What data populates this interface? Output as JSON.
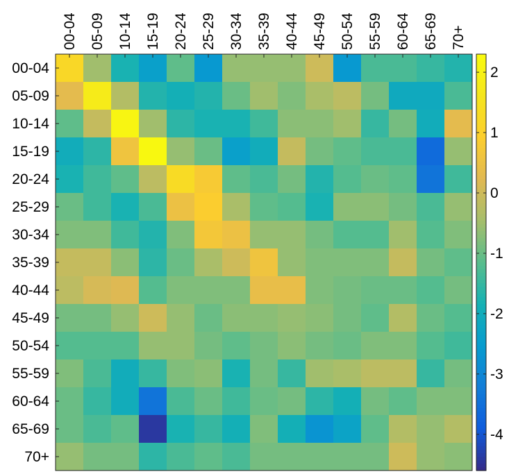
{
  "chart_data": {
    "type": "heatmap",
    "x_labels": [
      "00-04",
      "05-09",
      "10-14",
      "15-19",
      "20-24",
      "25-29",
      "30-34",
      "35-39",
      "40-44",
      "45-49",
      "50-54",
      "55-59",
      "60-64",
      "65-69",
      "70+"
    ],
    "y_labels": [
      "00-04",
      "05-09",
      "10-14",
      "15-19",
      "20-24",
      "25-29",
      "30-34",
      "35-39",
      "40-44",
      "45-49",
      "50-54",
      "55-59",
      "60-64",
      "65-69",
      "70+"
    ],
    "x_axis_position": "top",
    "values": [
      [
        1.2,
        -0.5,
        -1.8,
        -2.4,
        -1.1,
        -2.6,
        -0.6,
        -0.6,
        -0.6,
        0.0,
        -2.6,
        -1.3,
        -1.3,
        -1.5,
        -1.7
      ],
      [
        0.3,
        1.8,
        -0.3,
        -1.7,
        -1.9,
        -1.7,
        -1.0,
        -0.5,
        -0.8,
        -0.4,
        -0.2,
        -0.9,
        -2.1,
        -2.1,
        -1.3
      ],
      [
        -1.1,
        -0.1,
        2.1,
        -0.5,
        -1.6,
        -1.8,
        -1.8,
        -1.4,
        -0.7,
        -0.7,
        -0.5,
        -1.5,
        -0.9,
        -2.0,
        0.3
      ],
      [
        -2.0,
        -1.6,
        0.6,
        2.2,
        -0.6,
        -1.0,
        -2.4,
        -2.0,
        -0.1,
        -0.9,
        -1.1,
        -1.3,
        -1.3,
        -3.6,
        -0.6
      ],
      [
        -1.8,
        -1.4,
        -1.1,
        -0.2,
        1.3,
        0.8,
        -1.1,
        -1.3,
        -0.9,
        -1.7,
        -1.2,
        -1.0,
        -1.1,
        -3.4,
        -1.4
      ],
      [
        -1.0,
        -1.4,
        -1.8,
        -1.3,
        0.5,
        0.9,
        -0.4,
        -1.1,
        -1.2,
        -1.8,
        -0.7,
        -0.7,
        -0.9,
        -1.3,
        -0.6
      ],
      [
        -0.8,
        -0.8,
        -1.4,
        -1.7,
        -0.8,
        0.7,
        0.5,
        -0.6,
        -0.6,
        -0.9,
        -1.2,
        -1.2,
        -0.5,
        -1.2,
        -0.8
      ],
      [
        -0.1,
        -0.1,
        -0.7,
        -1.6,
        -1.0,
        -0.4,
        0.0,
        0.6,
        -0.6,
        -0.8,
        -0.8,
        -0.8,
        -0.1,
        -0.9,
        -1.1
      ],
      [
        -0.2,
        0.1,
        0.2,
        -1.2,
        -0.8,
        -0.8,
        -0.8,
        0.4,
        0.4,
        -0.8,
        -0.9,
        -1.0,
        -1.0,
        -1.2,
        -0.9
      ],
      [
        -0.9,
        -0.9,
        -0.6,
        0.0,
        -0.6,
        -1.0,
        -0.7,
        -0.7,
        -0.6,
        -0.7,
        -0.9,
        -1.1,
        -0.3,
        -1.0,
        -1.2
      ],
      [
        -1.2,
        -1.2,
        -1.2,
        -0.6,
        -0.6,
        -0.9,
        -1.1,
        -0.9,
        -0.7,
        -0.9,
        -1.0,
        -0.8,
        -0.8,
        -1.2,
        -1.4
      ],
      [
        -0.8,
        -1.3,
        -2.0,
        -1.5,
        -0.8,
        -0.7,
        -1.8,
        -0.9,
        -1.5,
        -0.5,
        -0.4,
        -0.2,
        -0.2,
        -1.5,
        -0.9
      ],
      [
        -1.0,
        -1.5,
        -2.0,
        -3.4,
        -1.3,
        -1.0,
        -1.4,
        -1.0,
        -0.9,
        -1.6,
        -1.9,
        -0.9,
        -1.1,
        -0.8,
        -0.8
      ],
      [
        -1.0,
        -1.3,
        -1.1,
        -4.4,
        -1.8,
        -1.5,
        -1.9,
        -0.8,
        -1.9,
        -2.7,
        -2.3,
        -1.1,
        -0.3,
        -0.6,
        -0.3
      ],
      [
        -0.6,
        -0.9,
        -0.9,
        -1.6,
        -1.3,
        -1.1,
        -1.3,
        -0.9,
        -0.9,
        -0.9,
        -0.9,
        -0.9,
        0.0,
        -0.6,
        -0.7
      ]
    ],
    "colorbar": {
      "ticks": [
        2,
        1,
        0,
        -1,
        -2,
        -3,
        -4
      ],
      "range": [
        -4.6,
        2.3
      ],
      "colormap": "parula"
    }
  }
}
